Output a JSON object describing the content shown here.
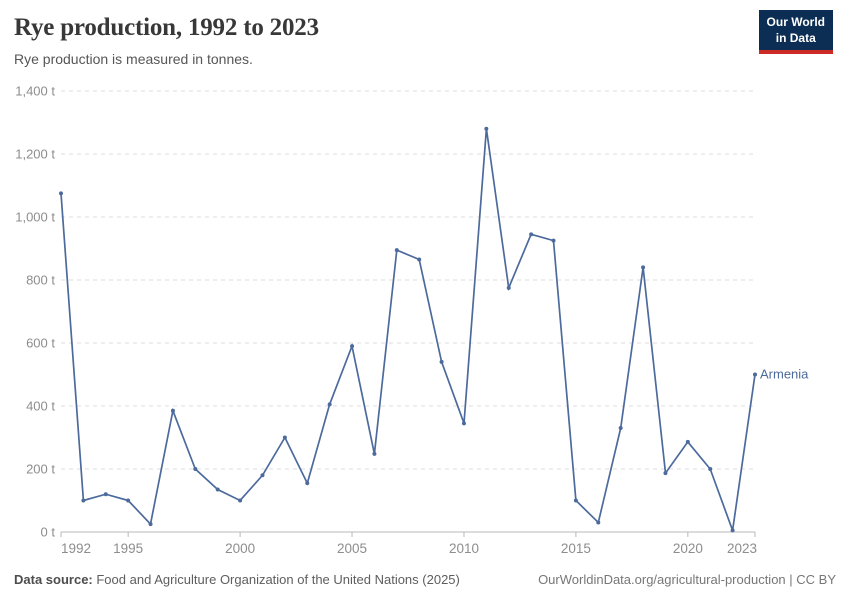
{
  "header": {
    "title": "Rye production, 1992 to 2023",
    "subtitle": "Rye production is measured in tonnes.",
    "logo": {
      "line1": "Our World",
      "line2": "in Data",
      "bg_color": "#0d2e54",
      "accent_color": "#cc2a24"
    }
  },
  "chart_data": {
    "type": "line",
    "title": "Rye production, 1992 to 2023",
    "ylabel": "tonnes",
    "xlabel": "",
    "unit": " t",
    "xlim": [
      1992,
      2023
    ],
    "ylim": [
      0,
      1400
    ],
    "grid": "horizontal-dashed",
    "x_ticks": [
      1992,
      1995,
      2000,
      2005,
      2010,
      2015,
      2020,
      2023
    ],
    "y_ticks": [
      0,
      200,
      400,
      600,
      800,
      1000,
      1200,
      1400
    ],
    "y_tick_labels": [
      "0 t",
      "200 t",
      "400 t",
      "600 t",
      "800 t",
      "1,000 t",
      "1,200 t",
      "1,400 t"
    ],
    "x": [
      1992,
      1993,
      1994,
      1995,
      1996,
      1997,
      1998,
      1999,
      2000,
      2001,
      2002,
      2003,
      2004,
      2005,
      2006,
      2007,
      2008,
      2009,
      2010,
      2011,
      2012,
      2013,
      2014,
      2015,
      2016,
      2017,
      2018,
      2019,
      2020,
      2021,
      2022,
      2023
    ],
    "series": [
      {
        "name": "Armenia",
        "color": "#4C6A9C",
        "values": [
          1075,
          100,
          120,
          100,
          25,
          385,
          200,
          135,
          100,
          180,
          300,
          155,
          405,
          590,
          248,
          895,
          865,
          540,
          345,
          1280,
          775,
          945,
          925,
          100,
          30,
          330,
          840,
          187,
          286,
          200,
          5,
          500
        ]
      }
    ],
    "legend_position": "right-of-last-point",
    "colors": {
      "gridline": "#dedede",
      "axis": "#b8b8b8",
      "tick_label": "#8d8d8d"
    }
  },
  "footer": {
    "source_label": "Data source:",
    "source_text": " Food and Agriculture Organization of the United Nations (2025)",
    "credit": "OurWorldinData.org/agricultural-production | CC BY"
  }
}
